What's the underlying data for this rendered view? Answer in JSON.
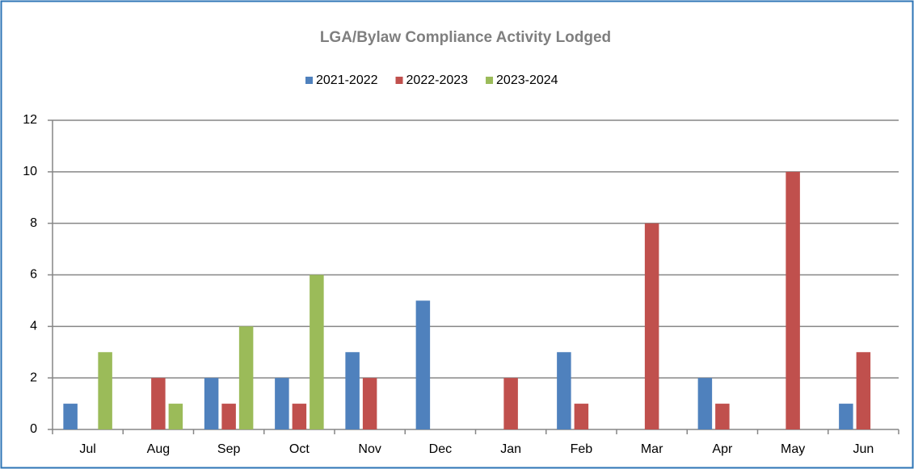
{
  "chart_data": {
    "type": "bar",
    "title": "LGA/Bylaw Compliance Activity Lodged",
    "categories": [
      "Jul",
      "Aug",
      "Sep",
      "Oct",
      "Nov",
      "Dec",
      "Jan",
      "Feb",
      "Mar",
      "Apr",
      "May",
      "Jun"
    ],
    "series": [
      {
        "name": "2021-2022",
        "color": "#4f81bd",
        "values": [
          1,
          0,
          2,
          2,
          3,
          5,
          0,
          3,
          0,
          2,
          0,
          1
        ]
      },
      {
        "name": "2022-2023",
        "color": "#c0504d",
        "values": [
          0,
          2,
          1,
          1,
          2,
          0,
          2,
          1,
          8,
          1,
          10,
          3
        ]
      },
      {
        "name": "2023-2024",
        "color": "#9bbb59",
        "values": [
          3,
          1,
          4,
          6,
          null,
          null,
          null,
          null,
          null,
          null,
          null,
          null
        ]
      }
    ],
    "ylim": [
      0,
      12
    ],
    "yticks": [
      0,
      2,
      4,
      6,
      8,
      10,
      12
    ],
    "grid": true,
    "legend": "top"
  }
}
